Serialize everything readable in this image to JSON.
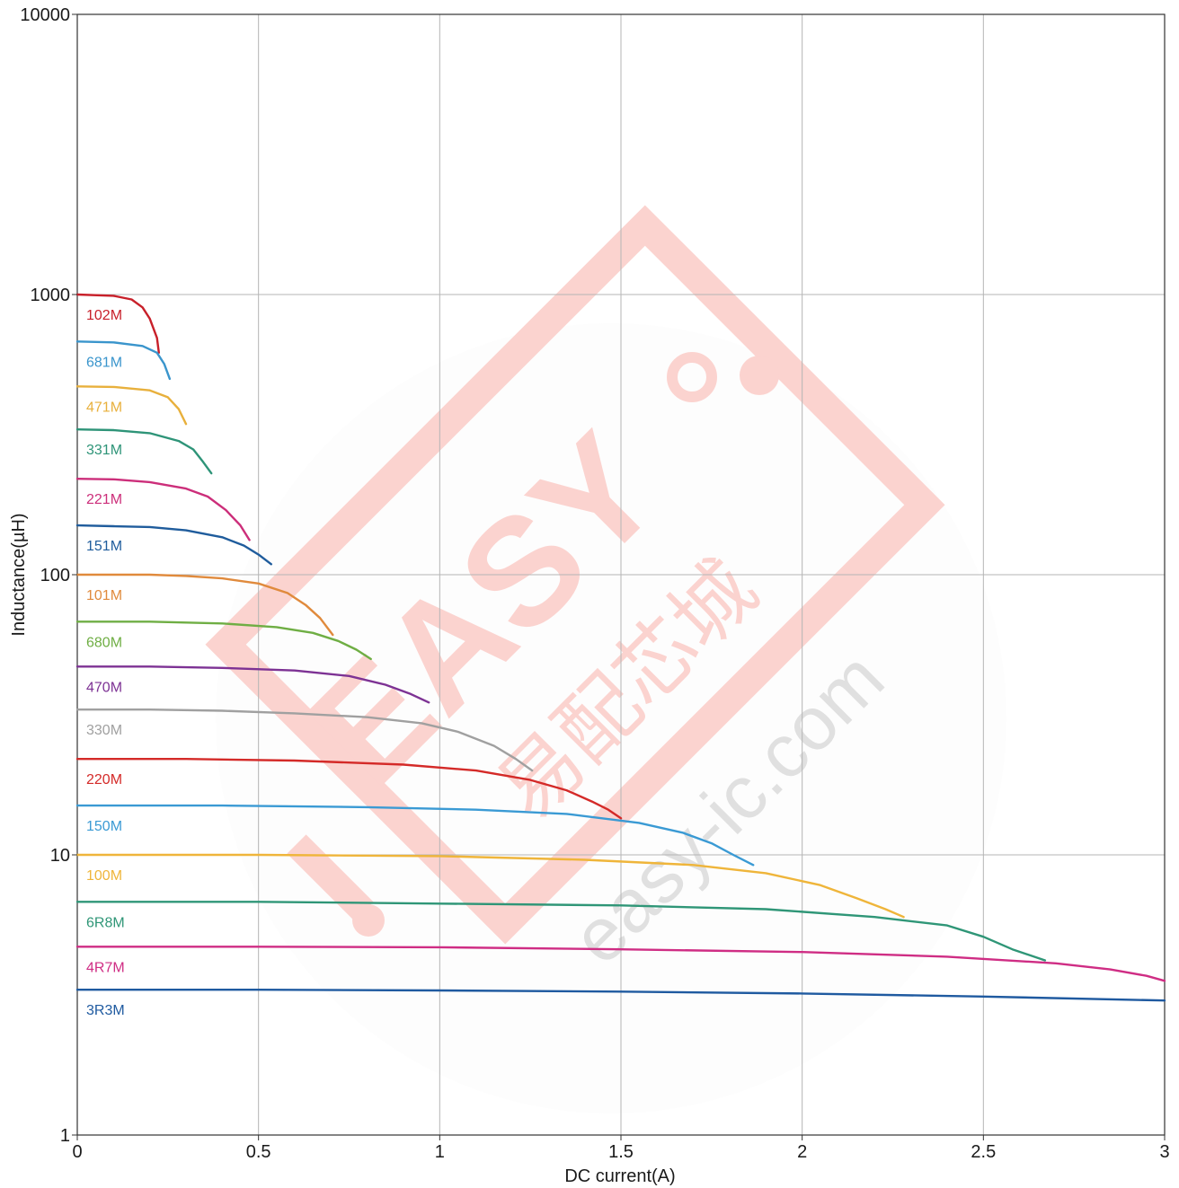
{
  "chart_data": {
    "type": "line",
    "title": "",
    "xlabel": "DC current(A)",
    "ylabel": "Inductance(µH)",
    "xlim": [
      0,
      3
    ],
    "ylim": [
      1,
      10000
    ],
    "yscale": "log",
    "grid": true,
    "x_ticks": [
      0,
      0.5,
      1,
      1.5,
      2,
      2.5,
      3
    ],
    "x_tick_labels": [
      "0",
      "0.5",
      "1",
      "1.5",
      "2",
      "2.5",
      "3"
    ],
    "y_ticks": [
      1,
      10,
      100,
      1000,
      10000
    ],
    "y_tick_labels": [
      "1",
      "10",
      "100",
      "1000",
      "10000"
    ],
    "series": [
      {
        "name": "102M",
        "color": "#c8202a",
        "x": [
          0,
          0.1,
          0.15,
          0.18,
          0.2,
          0.22,
          0.225
        ],
        "y": [
          1000,
          990,
          960,
          900,
          820,
          700,
          620
        ]
      },
      {
        "name": "681M",
        "color": "#3a95cc",
        "x": [
          0,
          0.1,
          0.18,
          0.22,
          0.24,
          0.255
        ],
        "y": [
          680,
          675,
          655,
          620,
          565,
          500
        ]
      },
      {
        "name": "471M",
        "color": "#e8b03c",
        "x": [
          0,
          0.1,
          0.2,
          0.25,
          0.28,
          0.3
        ],
        "y": [
          470,
          468,
          455,
          430,
          390,
          345
        ]
      },
      {
        "name": "331M",
        "color": "#2e9478",
        "x": [
          0,
          0.1,
          0.2,
          0.28,
          0.32,
          0.345,
          0.37
        ],
        "y": [
          330,
          328,
          320,
          300,
          280,
          255,
          230
        ]
      },
      {
        "name": "221M",
        "color": "#cc2e7a",
        "x": [
          0,
          0.1,
          0.2,
          0.3,
          0.36,
          0.41,
          0.45,
          0.475
        ],
        "y": [
          220,
          219,
          214,
          203,
          190,
          170,
          150,
          133
        ]
      },
      {
        "name": "151M",
        "color": "#1f5c9c",
        "x": [
          0,
          0.1,
          0.2,
          0.3,
          0.4,
          0.46,
          0.5,
          0.535
        ],
        "y": [
          150,
          149,
          148,
          144,
          136,
          127,
          118,
          109
        ]
      },
      {
        "name": "101M",
        "color": "#e08a3c",
        "x": [
          0,
          0.1,
          0.2,
          0.3,
          0.4,
          0.5,
          0.58,
          0.63,
          0.67,
          0.705
        ],
        "y": [
          100,
          100,
          100,
          99,
          97,
          93,
          86,
          78,
          70,
          61
        ]
      },
      {
        "name": "680M",
        "color": "#6fae44",
        "x": [
          0,
          0.2,
          0.4,
          0.55,
          0.65,
          0.72,
          0.77,
          0.81
        ],
        "y": [
          68,
          68,
          67,
          65,
          62,
          58,
          54,
          50
        ]
      },
      {
        "name": "470M",
        "color": "#7d3294",
        "x": [
          0,
          0.2,
          0.4,
          0.6,
          0.75,
          0.85,
          0.92,
          0.97
        ],
        "y": [
          47,
          47,
          46.5,
          45.5,
          43.5,
          40.5,
          37.5,
          35
        ]
      },
      {
        "name": "330M",
        "color": "#a0a0a0",
        "x": [
          0,
          0.2,
          0.4,
          0.6,
          0.8,
          0.95,
          1.05,
          1.15,
          1.21,
          1.255
        ],
        "y": [
          33,
          33,
          32.7,
          32,
          31,
          29.5,
          27.5,
          24.5,
          22,
          20
        ]
      },
      {
        "name": "220M",
        "color": "#d42a28",
        "x": [
          0,
          0.3,
          0.6,
          0.9,
          1.1,
          1.25,
          1.35,
          1.42,
          1.465,
          1.5
        ],
        "y": [
          22,
          22,
          21.7,
          21,
          20,
          18.5,
          17,
          15.5,
          14.5,
          13.5
        ]
      },
      {
        "name": "150M",
        "color": "#3a9ad4",
        "x": [
          0,
          0.4,
          0.8,
          1.1,
          1.35,
          1.55,
          1.67,
          1.75,
          1.81,
          1.865
        ],
        "y": [
          15,
          15,
          14.8,
          14.5,
          14,
          13,
          12,
          11,
          10,
          9.2
        ]
      },
      {
        "name": "100M",
        "color": "#efb53a",
        "x": [
          0,
          0.5,
          1.0,
          1.4,
          1.7,
          1.9,
          2.05,
          2.15,
          2.23,
          2.28
        ],
        "y": [
          10,
          10,
          9.9,
          9.6,
          9.2,
          8.6,
          7.8,
          7.0,
          6.4,
          6.0
        ]
      },
      {
        "name": "6R8M",
        "color": "#2f9677",
        "x": [
          0,
          0.5,
          1.0,
          1.5,
          1.9,
          2.2,
          2.4,
          2.5,
          2.58,
          2.67
        ],
        "y": [
          6.8,
          6.8,
          6.7,
          6.6,
          6.4,
          6.0,
          5.6,
          5.1,
          4.6,
          4.2
        ]
      },
      {
        "name": "4R7M",
        "color": "#cf2d84",
        "x": [
          0,
          0.5,
          1.0,
          1.5,
          2.0,
          2.4,
          2.7,
          2.85,
          2.95,
          3.0
        ],
        "y": [
          4.7,
          4.7,
          4.68,
          4.6,
          4.5,
          4.33,
          4.1,
          3.9,
          3.7,
          3.55
        ]
      },
      {
        "name": "3R3M",
        "color": "#1f5aa0",
        "x": [
          0,
          0.5,
          1.0,
          1.5,
          2.0,
          2.5,
          3.0
        ],
        "y": [
          3.3,
          3.3,
          3.28,
          3.25,
          3.2,
          3.12,
          3.02
        ]
      }
    ]
  },
  "watermark": {
    "brand": "EASY",
    "cn_text": "易配芯城",
    "url": "easy-ic.com",
    "color": "#f03a2a"
  }
}
